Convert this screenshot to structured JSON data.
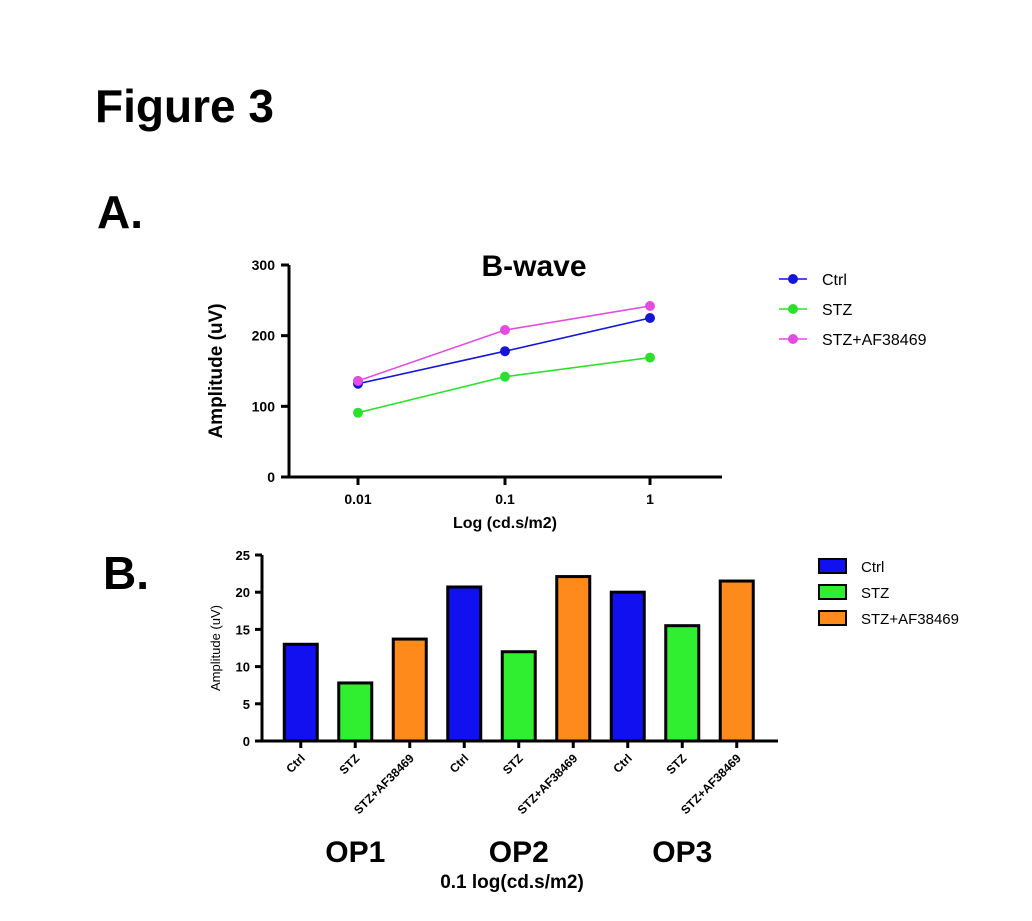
{
  "figure": {
    "title": "Figure 3",
    "panel_a_label": "A.",
    "panel_b_label": "B."
  },
  "chart_data": [
    {
      "type": "line",
      "title": "B-wave",
      "xlabel": "Log (cd.s/m2)",
      "ylabel": "Amplitude (uV)",
      "categories": [
        "0.01",
        "0.1",
        "1"
      ],
      "ylim": [
        0,
        300
      ],
      "yticks": [
        0,
        100,
        200,
        300
      ],
      "legend_position": "right",
      "series": [
        {
          "name": "Ctrl",
          "color": "#1515d8",
          "values": [
            132,
            178,
            225
          ]
        },
        {
          "name": "STZ",
          "color": "#2ee02e",
          "values": [
            91,
            142,
            169
          ]
        },
        {
          "name": "STZ+AF38469",
          "color": "#e04de0",
          "values": [
            136,
            208,
            242
          ]
        }
      ]
    },
    {
      "type": "bar",
      "title": "",
      "xlabel": "0.1 log(cd.s/m2)",
      "ylabel": "Amplitude (uV)",
      "ylim": [
        0,
        25
      ],
      "yticks": [
        0,
        5,
        10,
        15,
        20,
        25
      ],
      "legend_position": "right",
      "groups": [
        "OP1",
        "OP2",
        "OP3"
      ],
      "categories": [
        "Ctrl",
        "STZ",
        "STZ+AF38469"
      ],
      "series": [
        {
          "name": "Ctrl",
          "color": "#1010f0",
          "values": [
            13.0,
            20.7,
            20.0
          ]
        },
        {
          "name": "STZ",
          "color": "#30ee30",
          "values": [
            7.8,
            12.0,
            15.5
          ]
        },
        {
          "name": "STZ+AF38469",
          "color": "#ff8a1c",
          "values": [
            13.7,
            22.1,
            21.5
          ]
        }
      ]
    }
  ]
}
